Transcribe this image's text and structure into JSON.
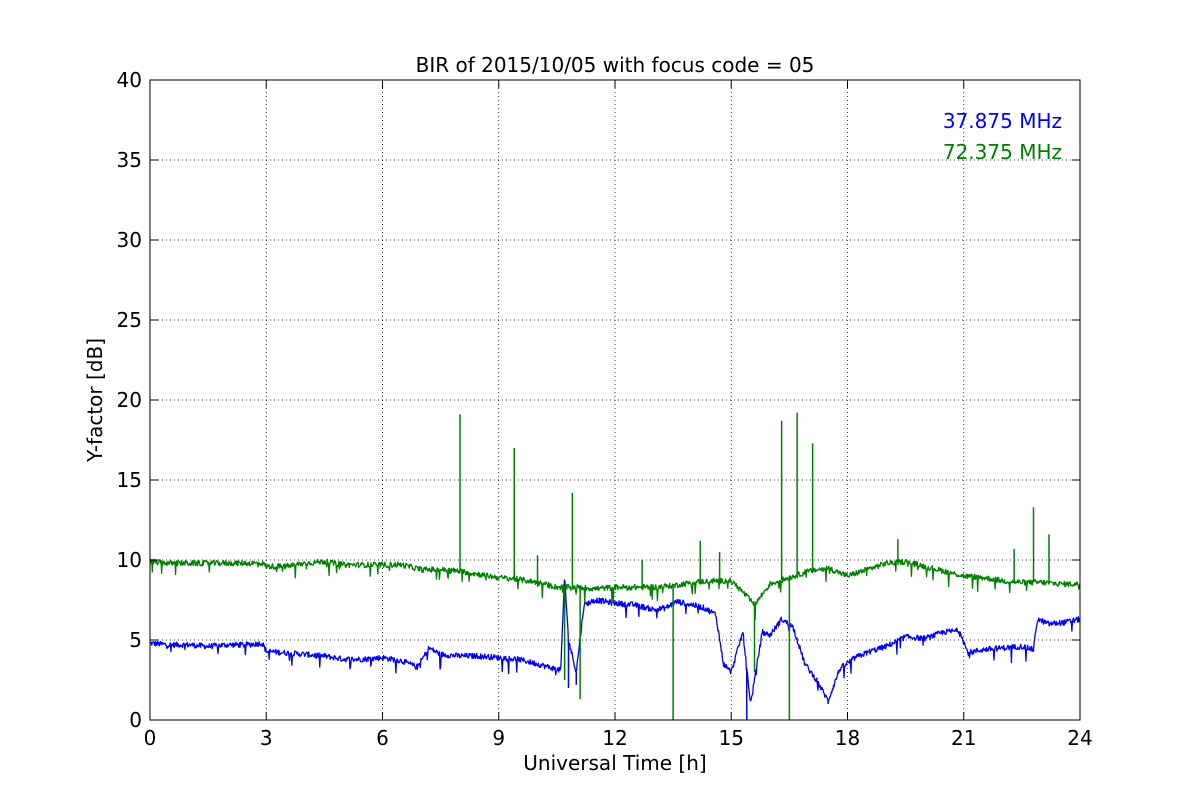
{
  "chart_data": {
    "type": "line",
    "title": "BIR of 2015/10/05 with focus code = 05",
    "xlabel": "Universal Time [h]",
    "ylabel": "Y-factor [dB]",
    "xlim": [
      0,
      24
    ],
    "ylim": [
      0,
      40
    ],
    "xticks": [
      0,
      3,
      6,
      9,
      12,
      15,
      18,
      21,
      24
    ],
    "yticks": [
      0,
      5,
      10,
      15,
      20,
      25,
      30,
      35,
      40
    ],
    "grid": true,
    "legend_position": "top-right",
    "series": [
      {
        "name": "37.875 MHz",
        "color": "#0000ff",
        "x": [
          0,
          0.5,
          1,
          1.5,
          2,
          2.5,
          2.9,
          3.0,
          3.5,
          4,
          4.5,
          5,
          5.5,
          6,
          6.5,
          6.9,
          7.2,
          7.5,
          8,
          8.5,
          9,
          9.5,
          10,
          10.3,
          10.6,
          10.7,
          10.8,
          11.0,
          11.2,
          11.5,
          12,
          12.5,
          13,
          13.3,
          13.6,
          14,
          14.3,
          14.6,
          14.8,
          15.0,
          15.3,
          15.5,
          15.8,
          16.0,
          16.3,
          16.6,
          16.9,
          17.2,
          17.5,
          17.8,
          18.2,
          18.6,
          19,
          19.5,
          20,
          20.5,
          20.9,
          21.1,
          21.5,
          22,
          22.5,
          22.8,
          22.9,
          23.2,
          23.6,
          24
        ],
        "y": [
          4.8,
          4.7,
          4.7,
          4.6,
          4.7,
          4.7,
          4.8,
          4.3,
          4.2,
          4.1,
          4.0,
          3.8,
          3.8,
          3.9,
          3.7,
          3.3,
          4.5,
          4.1,
          4.0,
          4.0,
          3.9,
          3.8,
          3.5,
          3.3,
          3.1,
          9.0,
          5.0,
          3.0,
          7.2,
          7.5,
          7.3,
          7.2,
          6.9,
          7.0,
          7.4,
          7.2,
          7.0,
          6.6,
          3.5,
          3.0,
          5.5,
          1.0,
          5.5,
          5.3,
          6.3,
          5.8,
          3.5,
          2.5,
          1.2,
          3.2,
          3.9,
          4.3,
          4.6,
          5.2,
          5.1,
          5.5,
          5.6,
          4.2,
          4.4,
          4.5,
          4.6,
          4.4,
          6.3,
          6.0,
          6.1,
          6.3
        ],
        "spikes": [
          {
            "x": 10.8,
            "y": 2.0
          },
          {
            "x": 11.0,
            "y": 2.2
          },
          {
            "x": 15.4,
            "y": 0.0
          },
          {
            "x": 17.5,
            "y": 1.0
          }
        ]
      },
      {
        "name": "72.375 MHz",
        "color": "#008000",
        "x": [
          0,
          0.5,
          1,
          1.5,
          2,
          2.5,
          2.9,
          3.0,
          3.5,
          4,
          4.5,
          5,
          5.5,
          6,
          6.5,
          7,
          7.5,
          8,
          8.5,
          9,
          9.5,
          10,
          10.5,
          11,
          11.5,
          12,
          12.5,
          13,
          13.5,
          14,
          14.5,
          15,
          15.3,
          15.6,
          16,
          16.5,
          17,
          17.5,
          18,
          18.5,
          19,
          19.5,
          20,
          20.5,
          21,
          21.5,
          22,
          22.5,
          23,
          23.5,
          24
        ],
        "y": [
          9.9,
          9.8,
          9.8,
          9.8,
          9.8,
          9.8,
          9.8,
          9.6,
          9.6,
          9.8,
          9.9,
          9.7,
          9.7,
          9.7,
          9.7,
          9.4,
          9.4,
          9.3,
          9.1,
          8.9,
          8.8,
          8.6,
          8.3,
          8.3,
          8.2,
          8.3,
          8.3,
          8.3,
          8.4,
          8.6,
          8.7,
          8.7,
          8.0,
          7.2,
          8.5,
          8.9,
          9.3,
          9.5,
          9.0,
          9.4,
          9.8,
          9.9,
          9.6,
          9.3,
          9.0,
          8.9,
          8.7,
          8.6,
          8.6,
          8.5,
          8.5
        ],
        "spikes": [
          {
            "x": 8.0,
            "y": 19.1
          },
          {
            "x": 9.4,
            "y": 17.0
          },
          {
            "x": 10.0,
            "y": 10.3
          },
          {
            "x": 10.9,
            "y": 14.2
          },
          {
            "x": 10.7,
            "y": 2.5
          },
          {
            "x": 11.1,
            "y": 1.3
          },
          {
            "x": 12.7,
            "y": 10.0
          },
          {
            "x": 13.5,
            "y": 0.0
          },
          {
            "x": 14.2,
            "y": 11.2
          },
          {
            "x": 14.7,
            "y": 10.5
          },
          {
            "x": 15.6,
            "y": 3.0
          },
          {
            "x": 16.3,
            "y": 18.7
          },
          {
            "x": 16.5,
            "y": 0.0
          },
          {
            "x": 16.7,
            "y": 19.2
          },
          {
            "x": 17.1,
            "y": 17.3
          },
          {
            "x": 19.3,
            "y": 11.3
          },
          {
            "x": 22.3,
            "y": 10.7
          },
          {
            "x": 22.8,
            "y": 13.3
          },
          {
            "x": 23.2,
            "y": 11.6
          }
        ]
      }
    ]
  }
}
